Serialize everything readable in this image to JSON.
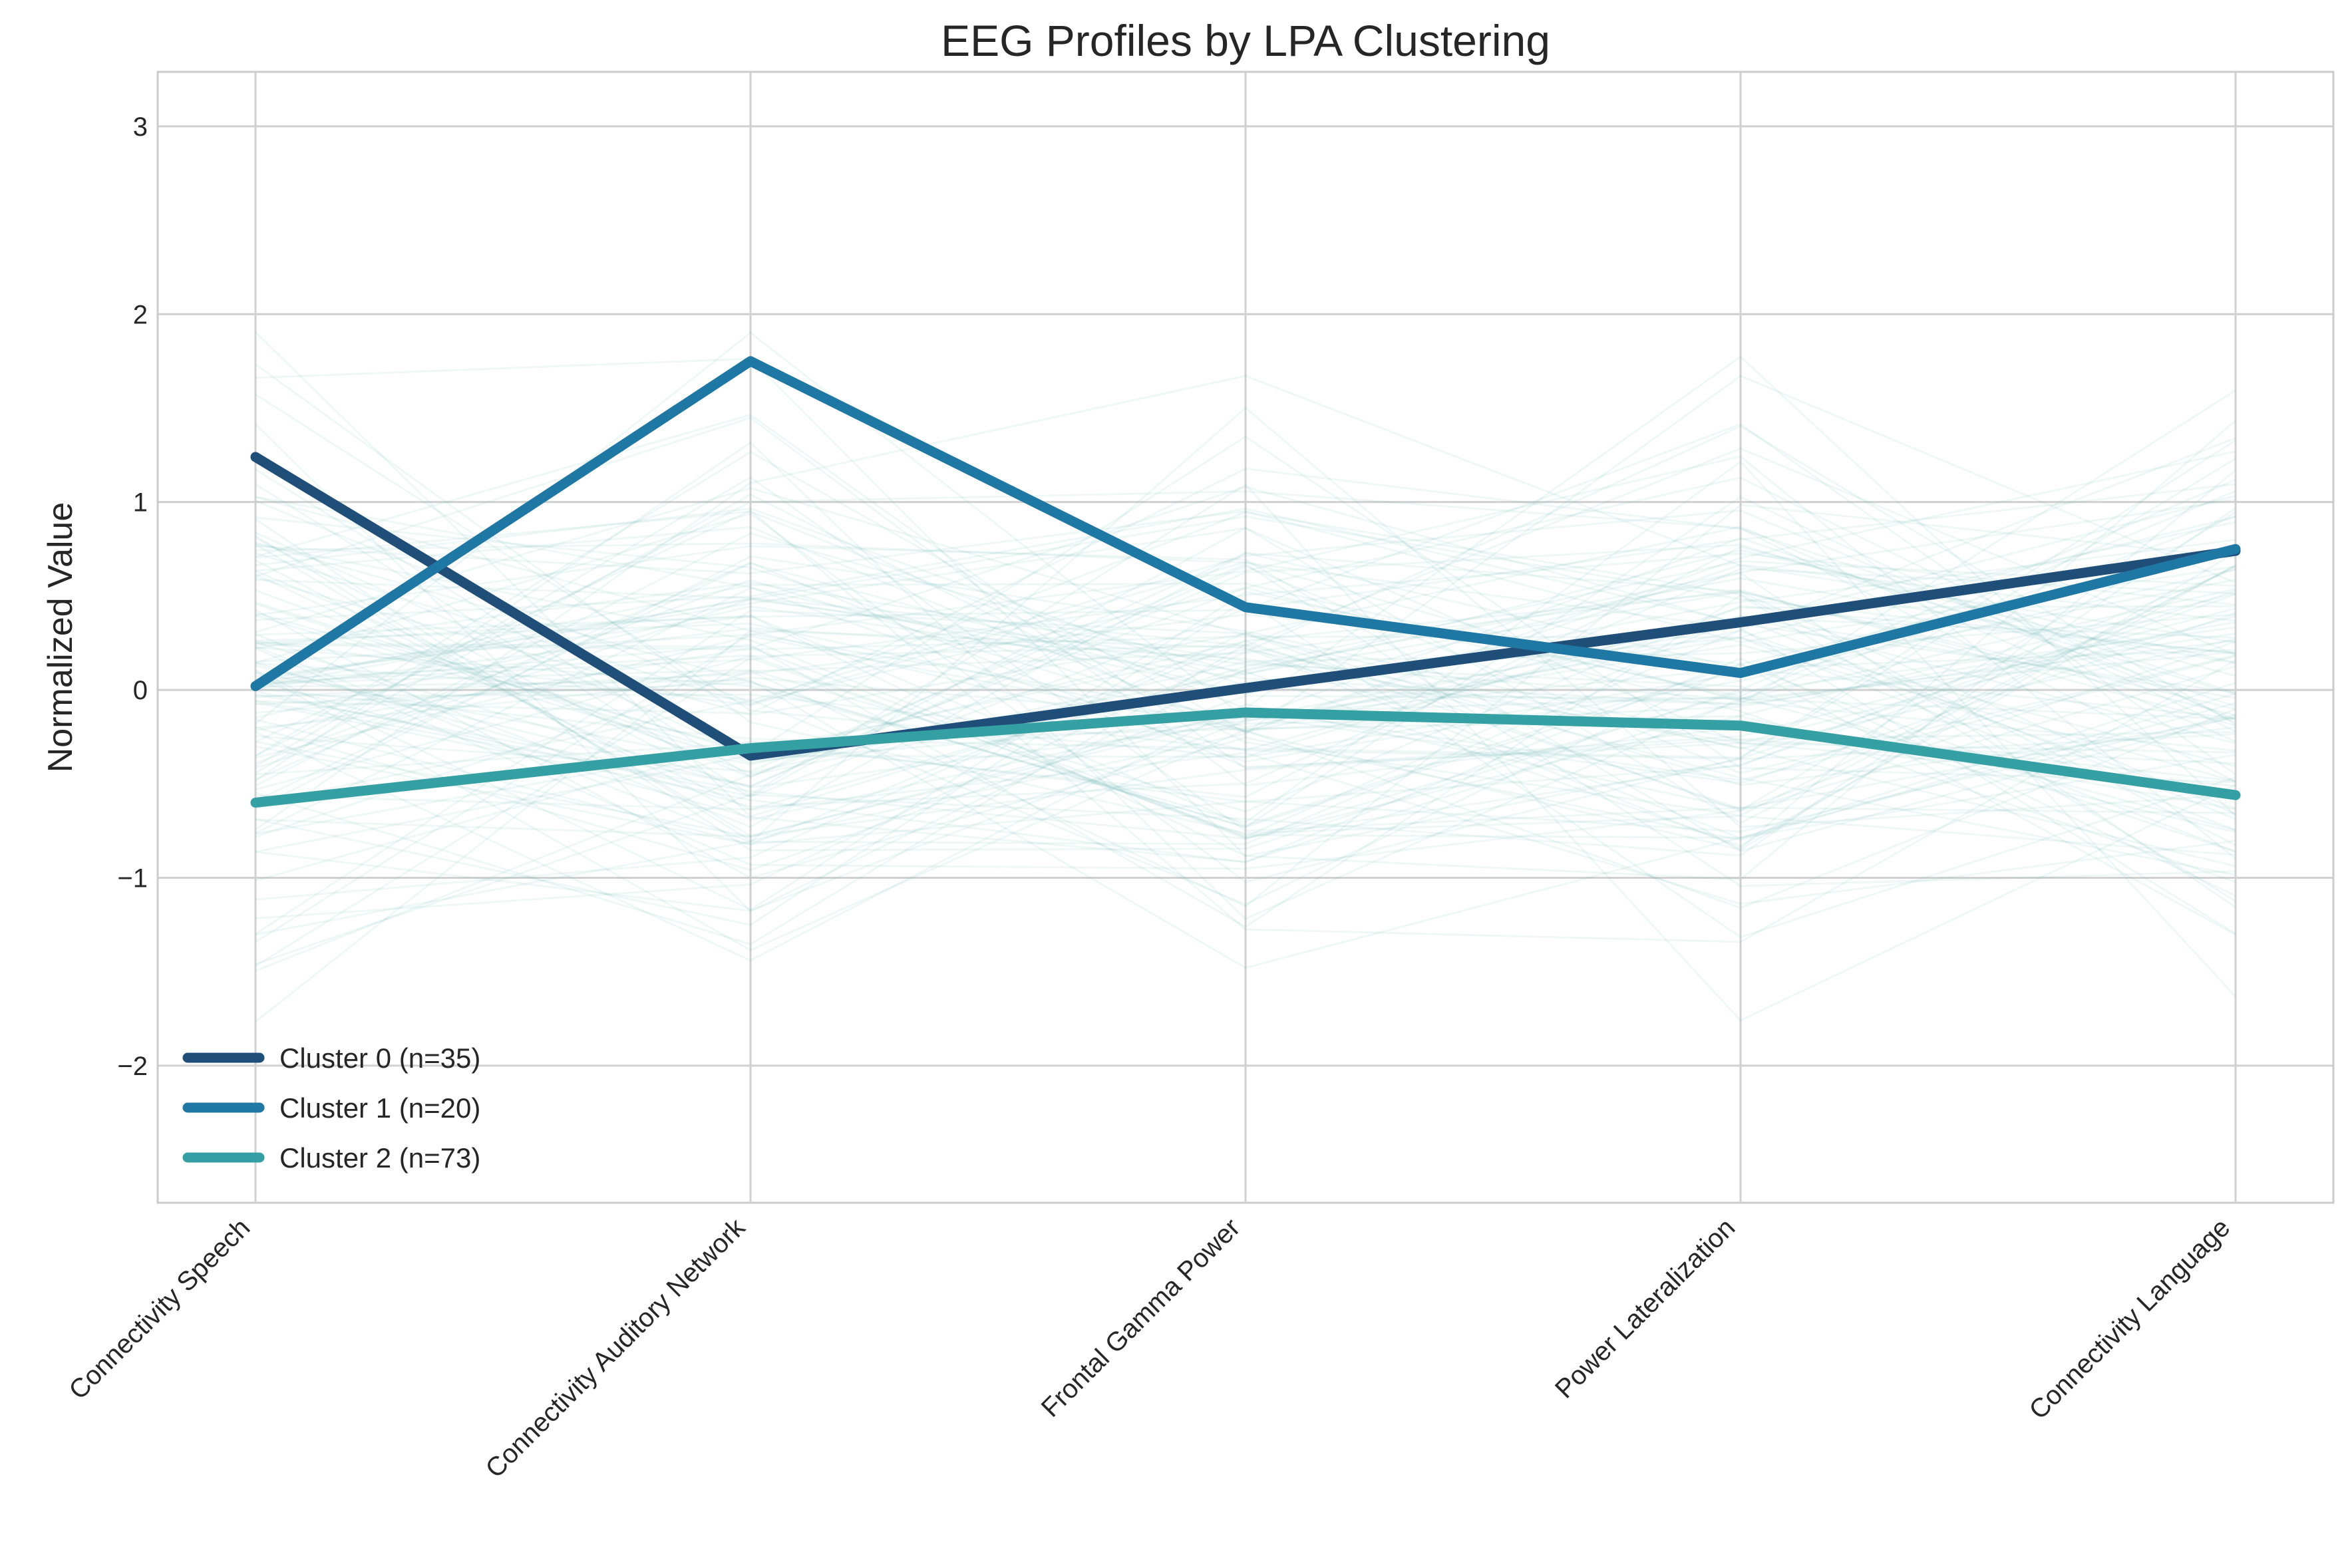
{
  "chart_data": {
    "type": "line",
    "title": "EEG Profiles by LPA Clustering",
    "xlabel": "",
    "ylabel": "Normalized Value",
    "categories": [
      "Connectivity Speech",
      "Connectivity Auditory Network",
      "Frontal Gamma Power",
      "Power Lateralization",
      "Connectivity Language"
    ],
    "ylim": [
      -2.73,
      3.29
    ],
    "yticks": [
      -2,
      -1,
      0,
      1,
      2,
      3
    ],
    "ytick_labels": [
      "−2",
      "−1",
      "0",
      "1",
      "2",
      "3"
    ],
    "grid": true,
    "legend_position": "lower-left",
    "series": [
      {
        "name": "Cluster 0 (n=35)",
        "color": "#1f4e79",
        "values": [
          1.24,
          -0.35,
          0.01,
          0.36,
          0.74
        ]
      },
      {
        "name": "Cluster 1 (n=20)",
        "color": "#1f77a3",
        "values": [
          0.02,
          1.75,
          0.44,
          0.09,
          0.75
        ]
      },
      {
        "name": "Cluster 2 (n=73)",
        "color": "#35a0a3",
        "values": [
          -0.6,
          -0.31,
          -0.12,
          -0.19,
          -0.56
        ]
      }
    ],
    "background_lines_color": "#7fbcc0"
  }
}
